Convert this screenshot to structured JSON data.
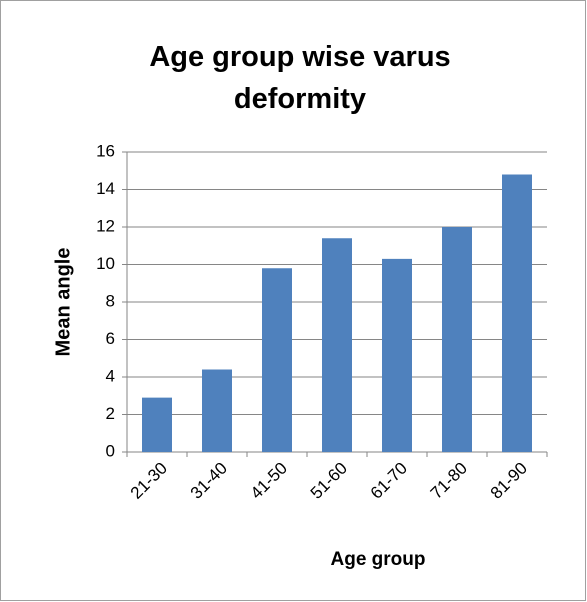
{
  "chart_data": {
    "type": "bar",
    "title": "Age group wise varus deformity",
    "x_label": "Age group",
    "y_label": "Mean angle",
    "categories": [
      "21-30",
      "31-40",
      "41-50",
      "51-60",
      "61-70",
      "71-80",
      "81-90"
    ],
    "values": [
      2.9,
      4.4,
      9.8,
      11.4,
      10.3,
      12.0,
      14.8
    ],
    "color": "#4f81bd",
    "ylim": [
      0,
      16
    ],
    "yticks": [
      0,
      2,
      4,
      6,
      8,
      10,
      12,
      14,
      16
    ],
    "grid": true
  }
}
